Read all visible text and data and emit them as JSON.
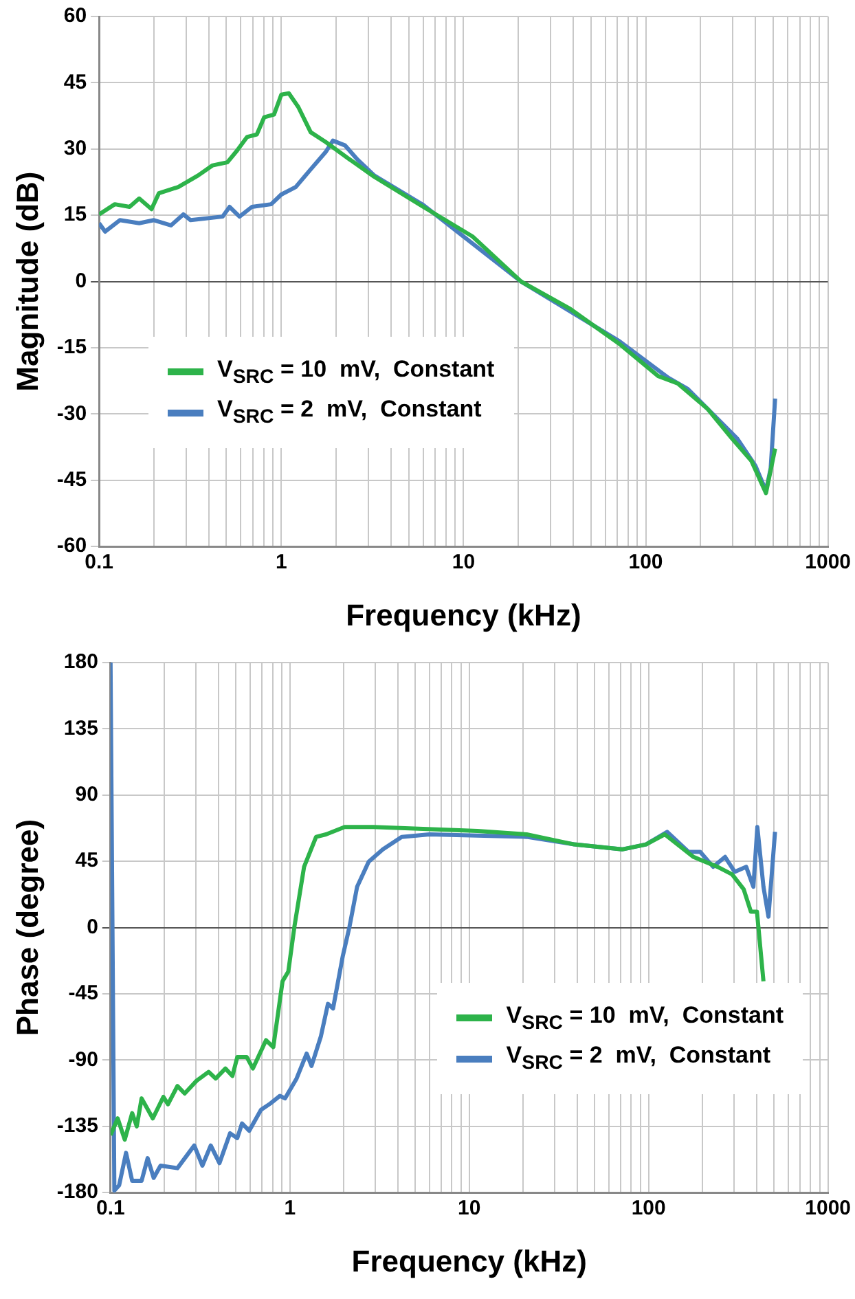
{
  "chart_data": [
    {
      "type": "line",
      "xlabel": "Frequency (kHz)",
      "ylabel": "Magnitude (dB)",
      "log": "x",
      "grid": true,
      "legend": "bottom left",
      "marker": "none",
      "line_style": "solid",
      "xlim": [
        0.1,
        1000
      ],
      "ylim": [
        -60,
        60
      ],
      "xticks": [
        0.1,
        {
          "value": 0.2,
          "label": null
        },
        {
          "value": 0.3,
          "label": null
        },
        {
          "value": 0.4,
          "label": null
        },
        {
          "value": 0.5,
          "label": null
        },
        {
          "value": 0.6,
          "label": null
        },
        {
          "value": 0.7,
          "label": null
        },
        {
          "value": 0.8,
          "label": null
        },
        {
          "value": 0.9,
          "label": null
        },
        1,
        {
          "value": 2,
          "label": null
        },
        {
          "value": 3,
          "label": null
        },
        {
          "value": 4,
          "label": null
        },
        {
          "value": 5,
          "label": null
        },
        {
          "value": 6,
          "label": null
        },
        {
          "value": 7,
          "label": null
        },
        {
          "value": 8,
          "label": null
        },
        {
          "value": 9,
          "label": null
        },
        10,
        {
          "value": 20,
          "label": null
        },
        {
          "value": 30,
          "label": null
        },
        {
          "value": 40,
          "label": null
        },
        {
          "value": 50,
          "label": null
        },
        {
          "value": 60,
          "label": null
        },
        {
          "value": 70,
          "label": null
        },
        {
          "value": 80,
          "label": null
        },
        {
          "value": 90,
          "label": null
        },
        100,
        {
          "value": 200,
          "label": null
        },
        {
          "value": 300,
          "label": null
        },
        {
          "value": 400,
          "label": null
        },
        {
          "value": 500,
          "label": null
        },
        {
          "value": 600,
          "label": null
        },
        {
          "value": 700,
          "label": null
        },
        {
          "value": 800,
          "label": null
        },
        {
          "value": 900,
          "label": null
        },
        1000
      ],
      "yticks": [
        -60,
        -45,
        -30,
        -15,
        0,
        15,
        30,
        45,
        60
      ],
      "series": [
        {
          "name": "V$_{SRC}$ = 10  mV,  Constant",
          "color": "#2db34a",
          "x": [
            0.1,
            0.122,
            0.147,
            0.166,
            0.194,
            0.213,
            0.272,
            0.349,
            0.42,
            0.506,
            0.573,
            0.648,
            0.734,
            0.806,
            0.912,
            1,
            1.1,
            1.24,
            1.45,
            1.75,
            2.38,
            3.24,
            6.02,
            11.2,
            20.7,
            38.5,
            71.6,
            117,
            150,
            218,
            297,
            380,
            457,
            513
          ],
          "values": [
            15.2,
            17.5,
            16.9,
            18.8,
            16.4,
            20,
            21.4,
            24,
            26.3,
            27,
            29.7,
            32.7,
            33.3,
            37.2,
            37.8,
            42.3,
            42.6,
            39.5,
            33.8,
            31.6,
            27.6,
            23.7,
            16.9,
            10.2,
            0,
            -6.2,
            -14.1,
            -21.4,
            -23.1,
            -28.8,
            -35.5,
            -40.6,
            -47.9,
            -37.8
          ]
        },
        {
          "name": "V$_{SRC}$ = 2  mV,  Constant",
          "color": "#4a7ebf",
          "x": [
            0.1,
            0.108,
            0.13,
            0.166,
            0.2,
            0.248,
            0.29,
            0.318,
            0.476,
            0.52,
            0.59,
            0.69,
            0.88,
            1,
            1.2,
            1.45,
            1.75,
            1.92,
            2.24,
            2.62,
            3.24,
            6.02,
            20.7,
            71.6,
            133,
            170,
            317,
            400,
            457,
            485,
            513
          ],
          "values": [
            13.2,
            11.3,
            13.9,
            13.2,
            13.9,
            12.7,
            15.2,
            13.9,
            14.7,
            16.9,
            14.7,
            16.9,
            17.5,
            19.7,
            21.4,
            25.4,
            29.3,
            31.9,
            30.8,
            27.6,
            24,
            17.3,
            0,
            -13.5,
            -21.8,
            -24.3,
            -35.5,
            -41.7,
            -47.4,
            -42.3,
            -26.5
          ]
        }
      ]
    },
    {
      "type": "line",
      "xlabel": "Frequency (kHz)",
      "ylabel": "Phase (degree)",
      "log": "x",
      "grid": true,
      "legend": "bottom right",
      "marker": "none",
      "line_style": "solid",
      "xlim": [
        0.1,
        1000
      ],
      "ylim": [
        -180,
        180
      ],
      "xticks": [
        0.1,
        {
          "value": 0.2,
          "label": null
        },
        {
          "value": 0.3,
          "label": null
        },
        {
          "value": 0.4,
          "label": null
        },
        {
          "value": 0.5,
          "label": null
        },
        {
          "value": 0.6,
          "label": null
        },
        {
          "value": 0.7,
          "label": null
        },
        {
          "value": 0.8,
          "label": null
        },
        {
          "value": 0.9,
          "label": null
        },
        1,
        {
          "value": 2,
          "label": null
        },
        {
          "value": 3,
          "label": null
        },
        {
          "value": 4,
          "label": null
        },
        {
          "value": 5,
          "label": null
        },
        {
          "value": 6,
          "label": null
        },
        {
          "value": 7,
          "label": null
        },
        {
          "value": 8,
          "label": null
        },
        {
          "value": 9,
          "label": null
        },
        10,
        {
          "value": 20,
          "label": null
        },
        {
          "value": 30,
          "label": null
        },
        {
          "value": 40,
          "label": null
        },
        {
          "value": 50,
          "label": null
        },
        {
          "value": 60,
          "label": null
        },
        {
          "value": 70,
          "label": null
        },
        {
          "value": 80,
          "label": null
        },
        {
          "value": 90,
          "label": null
        },
        100,
        {
          "value": 200,
          "label": null
        },
        {
          "value": 300,
          "label": null
        },
        {
          "value": 400,
          "label": null
        },
        {
          "value": 500,
          "label": null
        },
        {
          "value": 600,
          "label": null
        },
        {
          "value": 700,
          "label": null
        },
        {
          "value": 800,
          "label": null
        },
        {
          "value": 900,
          "label": null
        },
        1000
      ],
      "yticks": [
        -180,
        -135,
        -90,
        -45,
        0,
        45,
        90,
        135,
        180
      ],
      "series": [
        {
          "name": "V$_{SRC}$ = 10  mV,  Constant",
          "color": "#2db34a",
          "x": [
            0.1,
            0.1096,
            0.12,
            0.132,
            0.14,
            0.149,
            0.172,
            0.197,
            0.209,
            0.236,
            0.259,
            0.302,
            0.352,
            0.386,
            0.437,
            0.478,
            0.509,
            0.575,
            0.622,
            0.736,
            0.808,
            0.91,
            0.98,
            1.06,
            1.2,
            1.4,
            1.59,
            2.02,
            2.92,
            11.1,
            20.9,
            38.5,
            71.2,
            96.7,
            123,
            178,
            242,
            292,
            339,
            372,
            402,
            437
          ],
          "values": [
            -141,
            -129.6,
            -144,
            -126,
            -135,
            -116,
            -129.6,
            -115,
            -120,
            -107.6,
            -112.7,
            -104,
            -98,
            -102.5,
            -95.7,
            -100.8,
            -88,
            -88,
            -95.7,
            -76.5,
            -81.2,
            -36.5,
            -29.8,
            0.7,
            41.3,
            61.6,
            63.3,
            68.3,
            68.3,
            65.6,
            63.3,
            56.5,
            53.1,
            56.5,
            63.3,
            48,
            41.3,
            36.2,
            26,
            10.8,
            10.8,
            -36.5
          ]
        },
        {
          "name": "V$_{SRC}$ = 2  mV,  Constant",
          "color": "#4a7ebf",
          "x": [
            0.1,
            0.105,
            0.1117,
            0.122,
            0.132,
            0.149,
            0.161,
            0.174,
            0.19,
            0.236,
            0.293,
            0.325,
            0.362,
            0.405,
            0.464,
            0.509,
            0.541,
            0.593,
            0.69,
            0.78,
            0.88,
            0.94,
            1.09,
            1.24,
            1.32,
            1.49,
            1.63,
            1.74,
            1.97,
            2.15,
            2.37,
            2.75,
            3.3,
            4.2,
            6,
            20.9,
            38.5,
            71.2,
            96.7,
            127,
            167,
            194,
            229,
            267,
            302,
            350,
            384,
            404,
            437,
            466,
            507
          ],
          "values": [
            180,
            -178.6,
            -175,
            -153,
            -172,
            -172,
            -156.6,
            -170,
            -161.7,
            -163.4,
            -148,
            -161.7,
            -148,
            -160,
            -139.7,
            -143,
            -133,
            -138,
            -123.8,
            -119.4,
            -114.3,
            -116,
            -102.5,
            -85.6,
            -94,
            -73.7,
            -51.8,
            -55,
            -19.6,
            0.7,
            27.7,
            44.7,
            53.1,
            61.6,
            63.3,
            61.6,
            56.5,
            53.1,
            56.5,
            65,
            51.4,
            51.4,
            41.3,
            48,
            37.9,
            41.3,
            27.7,
            68.3,
            27.7,
            7.4,
            65
          ]
        }
      ]
    }
  ]
}
